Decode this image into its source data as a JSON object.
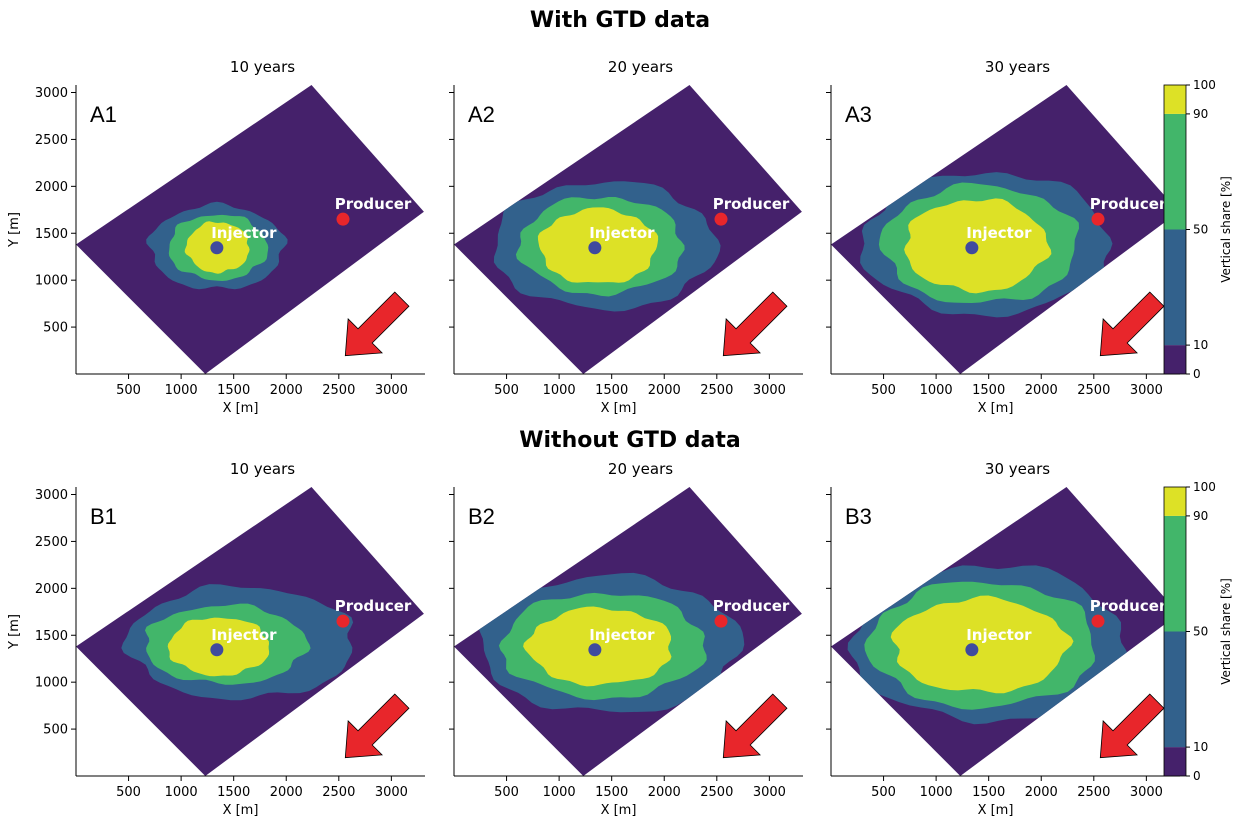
{
  "figure": {
    "section_titles": [
      "With GTD data",
      "Without GTD data"
    ]
  },
  "colors": {
    "field": "#45216b",
    "band_10_50": "#32618c",
    "band_50_90": "#42b66a",
    "band_90_100": "#dde126",
    "injector": "#3f4a9e",
    "producer": "#e8262b",
    "arrow": "#e8262b"
  },
  "chart_data": [
    {
      "type": "contour",
      "panel_label": "A1",
      "title": "10 years",
      "group": "With GTD data",
      "xlabel": "X [m]",
      "ylabel": "Y [m]",
      "xticks": [
        500,
        1000,
        1500,
        2000,
        2500,
        3000
      ],
      "yticks": [
        500,
        1000,
        1500,
        2000,
        2500,
        3000
      ],
      "xlim": [
        0,
        3320
      ],
      "ylim": [
        0,
        3080
      ],
      "field_polygon": [
        [
          0,
          1380
        ],
        [
          2240,
          3080
        ],
        [
          3310,
          1730
        ],
        [
          1230,
          0
        ]
      ],
      "wells": [
        {
          "name": "Injector",
          "x": 1340,
          "y": 1345
        },
        {
          "name": "Producer",
          "x": 2540,
          "y": 1650
        }
      ],
      "bands": [
        {
          "range": "10-50",
          "cx": 1340,
          "cy": 1350,
          "rx": 640,
          "ry": 450
        },
        {
          "range": "50-90",
          "cx": 1350,
          "cy": 1350,
          "rx": 470,
          "ry": 350
        },
        {
          "range": "90-100",
          "cx": 1350,
          "cy": 1350,
          "rx": 300,
          "ry": 270
        }
      ],
      "arrow_direction": "north-west"
    },
    {
      "type": "contour",
      "panel_label": "A2",
      "title": "20 years",
      "group": "With GTD data",
      "xlabel": "X [m]",
      "ylabel": "",
      "xticks": [
        500,
        1000,
        1500,
        2000,
        2500,
        3000
      ],
      "yticks": [],
      "xlim": [
        0,
        3320
      ],
      "ylim": [
        0,
        3080
      ],
      "field_polygon": [
        [
          0,
          1380
        ],
        [
          2240,
          3080
        ],
        [
          3310,
          1730
        ],
        [
          1230,
          0
        ]
      ],
      "wells": [
        {
          "name": "Injector",
          "x": 1340,
          "y": 1345
        },
        {
          "name": "Producer",
          "x": 2540,
          "y": 1650
        }
      ],
      "bands": [
        {
          "range": "10-50",
          "cx": 1430,
          "cy": 1370,
          "rx": 1060,
          "ry": 680
        },
        {
          "range": "50-90",
          "cx": 1400,
          "cy": 1370,
          "rx": 780,
          "ry": 520
        },
        {
          "range": "90-100",
          "cx": 1370,
          "cy": 1360,
          "rx": 560,
          "ry": 400
        }
      ],
      "arrow_direction": "north-west"
    },
    {
      "type": "contour",
      "panel_label": "A3",
      "title": "30 years",
      "group": "With GTD data",
      "xlabel": "X [m]",
      "ylabel": "",
      "xticks": [
        500,
        1000,
        1500,
        2000,
        2500,
        3000
      ],
      "yticks": [],
      "xlim": [
        0,
        3320
      ],
      "ylim": [
        0,
        3080
      ],
      "colorbar": {
        "label": "Vertical share [%]",
        "ticks": [
          0,
          10,
          50,
          90,
          100
        ]
      },
      "field_polygon": [
        [
          0,
          1380
        ],
        [
          2240,
          3080
        ],
        [
          3310,
          1730
        ],
        [
          1230,
          0
        ]
      ],
      "wells": [
        {
          "name": "Injector",
          "x": 1340,
          "y": 1345
        },
        {
          "name": "Producer",
          "x": 2540,
          "y": 1650
        }
      ],
      "bands": [
        {
          "range": "10-50",
          "cx": 1470,
          "cy": 1390,
          "rx": 1180,
          "ry": 760
        },
        {
          "range": "50-90",
          "cx": 1420,
          "cy": 1380,
          "rx": 930,
          "ry": 630
        },
        {
          "range": "90-100",
          "cx": 1380,
          "cy": 1370,
          "rx": 680,
          "ry": 490
        }
      ],
      "arrow_direction": "north-west"
    },
    {
      "type": "contour",
      "panel_label": "B1",
      "title": "10 years",
      "group": "Without GTD data",
      "xlabel": "X [m]",
      "ylabel": "Y [m]",
      "xticks": [
        500,
        1000,
        1500,
        2000,
        2500,
        3000
      ],
      "yticks": [
        500,
        1000,
        1500,
        2000,
        2500,
        3000
      ],
      "xlim": [
        0,
        3320
      ],
      "ylim": [
        0,
        3080
      ],
      "field_polygon": [
        [
          0,
          1380
        ],
        [
          2240,
          3080
        ],
        [
          3310,
          1730
        ],
        [
          1230,
          0
        ]
      ],
      "wells": [
        {
          "name": "Injector",
          "x": 1340,
          "y": 1345
        },
        {
          "name": "Producer",
          "x": 2540,
          "y": 1650
        }
      ],
      "bands": [
        {
          "range": "10-50",
          "cx": 1570,
          "cy": 1420,
          "rx": 1080,
          "ry": 600
        },
        {
          "range": "50-90",
          "cx": 1420,
          "cy": 1400,
          "rx": 770,
          "ry": 420
        },
        {
          "range": "90-100",
          "cx": 1360,
          "cy": 1380,
          "rx": 480,
          "ry": 310
        }
      ],
      "arrow_direction": "north-west"
    },
    {
      "type": "contour",
      "panel_label": "B2",
      "title": "20 years",
      "group": "Without GTD data",
      "xlabel": "X [m]",
      "ylabel": "",
      "xticks": [
        500,
        1000,
        1500,
        2000,
        2500,
        3000
      ],
      "yticks": [],
      "xlim": [
        0,
        3320
      ],
      "ylim": [
        0,
        3080
      ],
      "field_polygon": [
        [
          0,
          1380
        ],
        [
          2240,
          3080
        ],
        [
          3310,
          1730
        ],
        [
          1230,
          0
        ]
      ],
      "wells": [
        {
          "name": "Injector",
          "x": 1340,
          "y": 1345
        },
        {
          "name": "Producer",
          "x": 2540,
          "y": 1650
        }
      ],
      "bands": [
        {
          "range": "10-50",
          "cx": 1480,
          "cy": 1400,
          "rx": 1240,
          "ry": 730
        },
        {
          "range": "50-90",
          "cx": 1420,
          "cy": 1390,
          "rx": 970,
          "ry": 560
        },
        {
          "range": "90-100",
          "cx": 1390,
          "cy": 1380,
          "rx": 690,
          "ry": 410
        }
      ],
      "arrow_direction": "north-west"
    },
    {
      "type": "contour",
      "panel_label": "B3",
      "title": "30 years",
      "group": "Without GTD data",
      "xlabel": "X [m]",
      "ylabel": "",
      "xticks": [
        500,
        1000,
        1500,
        2000,
        2500,
        3000
      ],
      "yticks": [],
      "xlim": [
        0,
        3320
      ],
      "ylim": [
        0,
        3080
      ],
      "colorbar": {
        "label": "Vertical share [%]",
        "ticks": [
          0,
          10,
          50,
          90,
          100
        ]
      },
      "field_polygon": [
        [
          0,
          1380
        ],
        [
          2240,
          3080
        ],
        [
          3310,
          1730
        ],
        [
          1230,
          0
        ]
      ],
      "wells": [
        {
          "name": "Injector",
          "x": 1340,
          "y": 1345
        },
        {
          "name": "Producer",
          "x": 2540,
          "y": 1650
        }
      ],
      "bands": [
        {
          "range": "10-50",
          "cx": 1480,
          "cy": 1420,
          "rx": 1300,
          "ry": 830
        },
        {
          "range": "50-90",
          "cx": 1440,
          "cy": 1400,
          "rx": 1080,
          "ry": 670
        },
        {
          "range": "90-100",
          "cx": 1420,
          "cy": 1390,
          "rx": 830,
          "ry": 500
        }
      ],
      "arrow_direction": "north-west"
    }
  ]
}
